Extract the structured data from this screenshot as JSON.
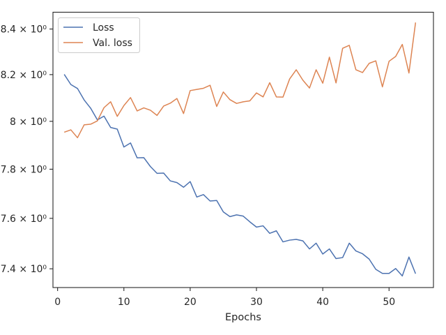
{
  "chart_data": {
    "type": "line",
    "title": "",
    "xlabel": "Epochs",
    "ylabel": "",
    "xlim": [
      -0.7,
      56.7
    ],
    "ylim": [
      7.327,
      8.475
    ],
    "yscale": "log",
    "grid": false,
    "legend_position": "top-left",
    "x_ticks": [
      0,
      10,
      20,
      30,
      40,
      50
    ],
    "y_ticks": [
      {
        "value": 7.4,
        "label": "7.4 × 10⁰"
      },
      {
        "value": 7.6,
        "label": "7.6 × 10⁰"
      },
      {
        "value": 7.8,
        "label": "7.8 × 10⁰"
      },
      {
        "value": 8.0,
        "label": "8 × 10⁰"
      },
      {
        "value": 8.2,
        "label": "8.2 × 10⁰"
      },
      {
        "value": 8.4,
        "label": "8.4 × 10⁰"
      }
    ],
    "x": [
      1,
      2,
      3,
      4,
      5,
      6,
      7,
      8,
      9,
      10,
      11,
      12,
      13,
      14,
      15,
      16,
      17,
      18,
      19,
      20,
      21,
      22,
      23,
      24,
      25,
      26,
      27,
      28,
      29,
      30,
      31,
      32,
      33,
      34,
      35,
      36,
      37,
      38,
      39,
      40,
      41,
      42,
      43,
      44,
      45,
      46,
      47,
      48,
      49,
      50,
      51,
      52,
      53,
      54
    ],
    "series": [
      {
        "name": "Loss",
        "color": "#4c72b0",
        "values": [
          8.201,
          8.157,
          8.14,
          8.091,
          8.055,
          8.006,
          8.022,
          7.974,
          7.967,
          7.892,
          7.909,
          7.847,
          7.848,
          7.811,
          7.783,
          7.784,
          7.752,
          7.745,
          7.726,
          7.749,
          7.686,
          7.696,
          7.67,
          7.672,
          7.626,
          7.607,
          7.614,
          7.609,
          7.586,
          7.565,
          7.57,
          7.54,
          7.55,
          7.506,
          7.513,
          7.516,
          7.51,
          7.478,
          7.501,
          7.458,
          7.478,
          7.44,
          7.444,
          7.501,
          7.47,
          7.459,
          7.438,
          7.398,
          7.382,
          7.382,
          7.401,
          7.372,
          7.446,
          7.381
        ]
      },
      {
        "name": "Val. loss",
        "color": "#dd8452",
        "values": [
          7.954,
          7.964,
          7.931,
          7.985,
          7.988,
          8.002,
          8.058,
          8.083,
          8.021,
          8.067,
          8.101,
          8.044,
          8.057,
          8.047,
          8.025,
          8.065,
          8.077,
          8.097,
          8.033,
          8.131,
          8.136,
          8.141,
          8.154,
          8.063,
          8.125,
          8.092,
          8.076,
          8.083,
          8.087,
          8.121,
          8.104,
          8.165,
          8.104,
          8.103,
          8.181,
          8.221,
          8.176,
          8.142,
          8.221,
          8.163,
          8.276,
          8.164,
          8.315,
          8.328,
          8.221,
          8.209,
          8.249,
          8.26,
          8.147,
          8.258,
          8.279,
          8.332,
          8.207,
          8.429
        ]
      }
    ]
  }
}
